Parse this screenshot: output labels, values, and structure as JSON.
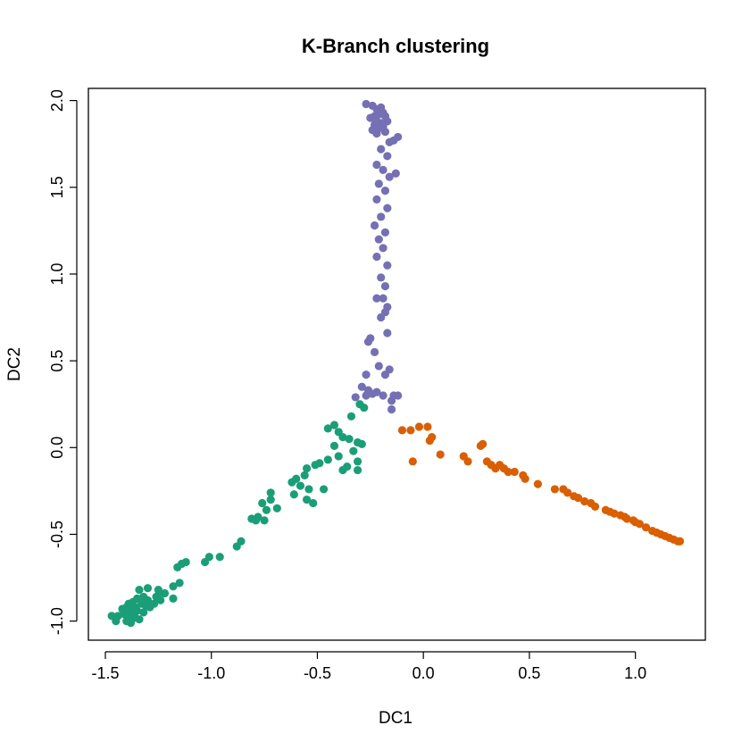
{
  "chart_data": {
    "type": "scatter",
    "title": "K-Branch clustering",
    "xlabel": "DC1",
    "ylabel": "DC2",
    "xlim": [
      -1.58,
      1.33
    ],
    "ylim": [
      -1.11,
      2.07
    ],
    "x_ticks": [
      -1.5,
      -1.0,
      -0.5,
      0.0,
      0.5,
      1.0
    ],
    "x_tick_labels": [
      "-1.5",
      "-1.0",
      "-0.5",
      "0.0",
      "0.5",
      "1.0"
    ],
    "y_ticks": [
      -1.0,
      -0.5,
      0.0,
      0.5,
      1.0,
      1.5,
      2.0
    ],
    "y_tick_labels": [
      "-1.0",
      "-0.5",
      "0.0",
      "0.5",
      "1.0",
      "1.5",
      "2.0"
    ],
    "grid": false,
    "legend": "none",
    "series": [
      {
        "color": "#7570B3",
        "points": [
          [
            -0.27,
            1.98
          ],
          [
            -0.24,
            1.97
          ],
          [
            -0.22,
            1.95
          ],
          [
            -0.2,
            1.96
          ],
          [
            -0.19,
            1.93
          ],
          [
            -0.21,
            1.92
          ],
          [
            -0.23,
            1.91
          ],
          [
            -0.25,
            1.9
          ],
          [
            -0.18,
            1.91
          ],
          [
            -0.22,
            1.88
          ],
          [
            -0.2,
            1.87
          ],
          [
            -0.17,
            1.88
          ],
          [
            -0.23,
            1.86
          ],
          [
            -0.19,
            1.85
          ],
          [
            -0.21,
            1.84
          ],
          [
            -0.24,
            1.83
          ],
          [
            -0.18,
            1.82
          ],
          [
            -0.22,
            1.81
          ],
          [
            -0.12,
            1.79
          ],
          [
            -0.14,
            1.77
          ],
          [
            -0.16,
            1.76
          ],
          [
            -0.2,
            1.72
          ],
          [
            -0.17,
            1.68
          ],
          [
            -0.22,
            1.63
          ],
          [
            -0.19,
            1.6
          ],
          [
            -0.13,
            1.58
          ],
          [
            -0.16,
            1.56
          ],
          [
            -0.21,
            1.52
          ],
          [
            -0.18,
            1.48
          ],
          [
            -0.22,
            1.43
          ],
          [
            -0.17,
            1.38
          ],
          [
            -0.2,
            1.33
          ],
          [
            -0.23,
            1.28
          ],
          [
            -0.18,
            1.24
          ],
          [
            -0.21,
            1.2
          ],
          [
            -0.19,
            1.15
          ],
          [
            -0.22,
            1.1
          ],
          [
            -0.17,
            1.05
          ],
          [
            -0.2,
            0.98
          ],
          [
            -0.18,
            0.93
          ],
          [
            -0.22,
            0.86
          ],
          [
            -0.19,
            0.86
          ],
          [
            -0.17,
            0.81
          ],
          [
            -0.18,
            0.78
          ],
          [
            -0.2,
            0.75
          ],
          [
            -0.25,
            0.63
          ],
          [
            -0.26,
            0.61
          ],
          [
            -0.17,
            0.66
          ],
          [
            -0.23,
            0.55
          ],
          [
            -0.21,
            0.47
          ],
          [
            -0.16,
            0.45
          ],
          [
            -0.18,
            0.42
          ],
          [
            -0.27,
            0.42
          ],
          [
            -0.29,
            0.35
          ],
          [
            -0.26,
            0.33
          ],
          [
            -0.24,
            0.31
          ],
          [
            -0.22,
            0.32
          ],
          [
            -0.19,
            0.3
          ],
          [
            -0.14,
            0.3
          ],
          [
            -0.12,
            0.3
          ],
          [
            -0.15,
            0.27
          ],
          [
            -0.32,
            0.29
          ],
          [
            -0.27,
            0.3
          ],
          [
            -0.15,
            0.22
          ]
        ]
      },
      {
        "color": "#1B9E77",
        "points": [
          [
            -0.3,
            0.25
          ],
          [
            -0.28,
            0.23
          ],
          [
            -0.34,
            0.18
          ],
          [
            -0.42,
            0.13
          ],
          [
            -0.45,
            0.11
          ],
          [
            -0.4,
            0.09
          ],
          [
            -0.38,
            0.06
          ],
          [
            -0.35,
            0.05
          ],
          [
            -0.31,
            0.03
          ],
          [
            -0.29,
            0.02
          ],
          [
            -0.33,
            -0.02
          ],
          [
            -0.42,
            0.01
          ],
          [
            -0.4,
            -0.05
          ],
          [
            -0.45,
            -0.07
          ],
          [
            -0.49,
            -0.09
          ],
          [
            -0.51,
            -0.1
          ],
          [
            -0.31,
            -0.08
          ],
          [
            -0.36,
            -0.11
          ],
          [
            -0.38,
            -0.13
          ],
          [
            -0.31,
            -0.13
          ],
          [
            -0.55,
            -0.12
          ],
          [
            -0.56,
            -0.16
          ],
          [
            -0.6,
            -0.18
          ],
          [
            -0.62,
            -0.2
          ],
          [
            -0.58,
            -0.22
          ],
          [
            -0.54,
            -0.24
          ],
          [
            -0.47,
            -0.24
          ],
          [
            -0.61,
            -0.27
          ],
          [
            -0.55,
            -0.3
          ],
          [
            -0.52,
            -0.32
          ],
          [
            -0.72,
            -0.26
          ],
          [
            -0.72,
            -0.3
          ],
          [
            -0.76,
            -0.32
          ],
          [
            -0.74,
            -0.36
          ],
          [
            -0.69,
            -0.35
          ],
          [
            -0.78,
            -0.4
          ],
          [
            -0.81,
            -0.41
          ],
          [
            -0.75,
            -0.42
          ],
          [
            -0.79,
            -0.42
          ],
          [
            -0.86,
            -0.54
          ],
          [
            -0.88,
            -0.57
          ],
          [
            -0.96,
            -0.63
          ],
          [
            -1.01,
            -0.63
          ],
          [
            -1.03,
            -0.66
          ],
          [
            -1.12,
            -0.66
          ],
          [
            -1.14,
            -0.67
          ],
          [
            -1.16,
            -0.69
          ],
          [
            -1.15,
            -0.78
          ],
          [
            -1.18,
            -0.8
          ],
          [
            -1.25,
            -0.82
          ],
          [
            -1.18,
            -0.87
          ],
          [
            -1.25,
            -0.85
          ],
          [
            -1.3,
            -0.81
          ],
          [
            -1.34,
            -0.82
          ],
          [
            -1.32,
            -0.86
          ],
          [
            -1.3,
            -0.88
          ],
          [
            -1.35,
            -0.87
          ],
          [
            -1.37,
            -0.89
          ],
          [
            -1.39,
            -0.9
          ],
          [
            -1.33,
            -0.9
          ],
          [
            -1.31,
            -0.91
          ],
          [
            -1.36,
            -0.92
          ],
          [
            -1.4,
            -0.92
          ],
          [
            -1.42,
            -0.93
          ],
          [
            -1.38,
            -0.94
          ],
          [
            -1.35,
            -0.94
          ],
          [
            -1.32,
            -0.95
          ],
          [
            -1.37,
            -0.96
          ],
          [
            -1.41,
            -0.96
          ],
          [
            -1.44,
            -0.97
          ],
          [
            -1.39,
            -0.98
          ],
          [
            -1.36,
            -0.98
          ],
          [
            -1.47,
            -0.97
          ],
          [
            -1.45,
            -1.0
          ],
          [
            -1.4,
            -1.0
          ],
          [
            -1.38,
            -1.01
          ],
          [
            -1.34,
            -0.99
          ],
          [
            -1.29,
            -0.92
          ],
          [
            -1.27,
            -0.9
          ],
          [
            -1.24,
            -0.88
          ],
          [
            -1.26,
            -0.86
          ],
          [
            -1.22,
            -0.84
          ]
        ]
      },
      {
        "color": "#D95F02",
        "points": [
          [
            -0.1,
            0.1
          ],
          [
            -0.06,
            0.1
          ],
          [
            -0.02,
            0.12
          ],
          [
            0.02,
            0.12
          ],
          [
            0.04,
            0.06
          ],
          [
            0.03,
            0.04
          ],
          [
            -0.05,
            -0.08
          ],
          [
            0.08,
            -0.04
          ],
          [
            0.19,
            -0.05
          ],
          [
            0.21,
            -0.08
          ],
          [
            0.28,
            0.02
          ],
          [
            0.27,
            0.01
          ],
          [
            0.3,
            -0.08
          ],
          [
            0.32,
            -0.1
          ],
          [
            0.34,
            -0.12
          ],
          [
            0.36,
            -0.1
          ],
          [
            0.38,
            -0.12
          ],
          [
            0.4,
            -0.14
          ],
          [
            0.43,
            -0.14
          ],
          [
            0.47,
            -0.16
          ],
          [
            0.48,
            -0.18
          ],
          [
            0.54,
            -0.21
          ],
          [
            0.62,
            -0.24
          ],
          [
            0.66,
            -0.24
          ],
          [
            0.68,
            -0.26
          ],
          [
            0.71,
            -0.28
          ],
          [
            0.73,
            -0.29
          ],
          [
            0.76,
            -0.31
          ],
          [
            0.79,
            -0.32
          ],
          [
            0.81,
            -0.34
          ],
          [
            0.86,
            -0.36
          ],
          [
            0.9,
            -0.38
          ],
          [
            0.93,
            -0.39
          ],
          [
            0.96,
            -0.41
          ],
          [
            0.99,
            -0.42
          ],
          [
            1.02,
            -0.44
          ],
          [
            1.05,
            -0.46
          ],
          [
            1.08,
            -0.48
          ],
          [
            1.1,
            -0.49
          ],
          [
            1.12,
            -0.5
          ],
          [
            1.14,
            -0.51
          ],
          [
            1.16,
            -0.52
          ],
          [
            1.18,
            -0.53
          ],
          [
            1.2,
            -0.54
          ],
          [
            1.21,
            -0.54
          ],
          [
            1.0,
            -0.43
          ],
          [
            0.95,
            -0.4
          ],
          [
            0.88,
            -0.37
          ]
        ]
      }
    ]
  }
}
